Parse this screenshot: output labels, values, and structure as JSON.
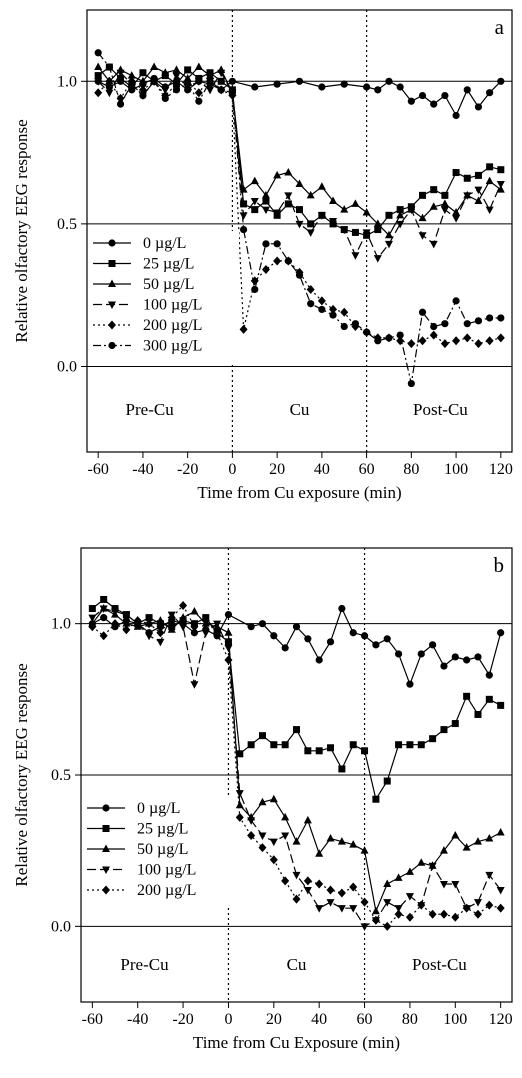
{
  "chart_data": [
    {
      "type": "line",
      "panel_label": "a",
      "xlabel": "Time from Cu exposure (min)",
      "ylabel": "Relative olfactory EEG response",
      "xlim": [
        -65,
        125
      ],
      "ylim": [
        -0.3,
        1.25
      ],
      "xticks": [
        -60,
        -40,
        -20,
        0,
        20,
        40,
        60,
        80,
        100,
        120
      ],
      "xtick_labels": [
        "-60",
        "-40",
        "-20",
        "0",
        "20",
        "40",
        "60",
        "80",
        "100",
        "120"
      ],
      "yticks": [
        0.0,
        0.5,
        1.0
      ],
      "ytick_labels": [
        "0.0",
        "0.5",
        "1.0"
      ],
      "reference_lines_y": [
        0.0,
        0.5,
        1.0
      ],
      "vertical_lines_x": [
        0,
        60
      ],
      "phase_labels": [
        {
          "text": "Pre-Cu",
          "x": -37
        },
        {
          "text": "Cu",
          "x": 30
        },
        {
          "text": "Post-Cu",
          "x": 93
        }
      ],
      "legend_position": "middle-left",
      "series": [
        {
          "name": "0 µg/L",
          "marker": "circle",
          "dash": "solid",
          "x": [
            -60,
            -55,
            -50,
            -45,
            -40,
            -35,
            -30,
            -25,
            -20,
            -15,
            -10,
            -5,
            0,
            10,
            20,
            30,
            40,
            50,
            60,
            65,
            70,
            75,
            80,
            85,
            90,
            95,
            100,
            105,
            110,
            115,
            120
          ],
          "y": [
            1.0,
            0.98,
            1.0,
            0.97,
            0.99,
            1.01,
            0.98,
            1.0,
            0.97,
            1.0,
            0.99,
            0.97,
            1.0,
            0.98,
            0.99,
            1.0,
            0.98,
            0.99,
            0.98,
            0.97,
            1.0,
            0.98,
            0.93,
            0.95,
            0.92,
            0.95,
            0.88,
            0.97,
            0.91,
            0.96,
            1.0
          ]
        },
        {
          "name": "25 µg/L",
          "marker": "square",
          "dash": "solid",
          "x": [
            -60,
            -55,
            -50,
            -45,
            -40,
            -35,
            -30,
            -25,
            -20,
            -15,
            -10,
            -5,
            0,
            5,
            10,
            15,
            20,
            25,
            30,
            35,
            40,
            45,
            50,
            55,
            60,
            65,
            70,
            75,
            80,
            85,
            90,
            95,
            100,
            105,
            110,
            115,
            120
          ],
          "y": [
            1.02,
            1.05,
            1.01,
            0.98,
            1.03,
            1.0,
            1.02,
            0.99,
            1.04,
            1.01,
            1.03,
            1.0,
            0.97,
            0.57,
            0.55,
            0.58,
            0.53,
            0.57,
            0.55,
            0.5,
            0.53,
            0.5,
            0.48,
            0.47,
            0.46,
            0.48,
            0.53,
            0.55,
            0.56,
            0.6,
            0.62,
            0.6,
            0.68,
            0.66,
            0.67,
            0.7,
            0.69
          ]
        },
        {
          "name": "50 µg/L",
          "marker": "triangle-up",
          "dash": "solid",
          "x": [
            -60,
            -55,
            -50,
            -45,
            -40,
            -35,
            -30,
            -25,
            -20,
            -15,
            -10,
            -5,
            0,
            5,
            10,
            15,
            20,
            25,
            30,
            35,
            40,
            45,
            50,
            55,
            60,
            65,
            70,
            75,
            80,
            85,
            90,
            95,
            100,
            105,
            110,
            115,
            120
          ],
          "y": [
            1.05,
            1.0,
            1.04,
            1.02,
            1.0,
            1.05,
            1.03,
            1.04,
            1.01,
            1.05,
            1.02,
            1.04,
            0.96,
            0.62,
            0.65,
            0.6,
            0.67,
            0.68,
            0.64,
            0.6,
            0.63,
            0.58,
            0.55,
            0.57,
            0.54,
            0.5,
            0.46,
            0.53,
            0.55,
            0.52,
            0.56,
            0.57,
            0.54,
            0.6,
            0.58,
            0.65,
            0.62
          ]
        },
        {
          "name": "100 µg/L",
          "marker": "triangle-down",
          "dash": "long-dash",
          "x": [
            -60,
            -55,
            -50,
            -45,
            -40,
            -35,
            -30,
            -25,
            -20,
            -15,
            -10,
            -5,
            0,
            5,
            10,
            15,
            20,
            25,
            30,
            35,
            40,
            45,
            50,
            55,
            60,
            65,
            70,
            75,
            80,
            85,
            90,
            95,
            100,
            105,
            110,
            115,
            120
          ],
          "y": [
            1.0,
            0.96,
            1.03,
            0.99,
            0.95,
            1.0,
            0.97,
            1.02,
            0.98,
            1.0,
            0.97,
            1.03,
            0.96,
            0.53,
            0.58,
            0.55,
            0.54,
            0.6,
            0.5,
            0.47,
            0.53,
            0.51,
            0.48,
            0.39,
            0.47,
            0.38,
            0.43,
            0.5,
            0.55,
            0.46,
            0.43,
            0.55,
            0.52,
            0.6,
            0.62,
            0.55,
            0.64
          ]
        },
        {
          "name": "200 µg/L",
          "marker": "diamond",
          "dash": "dotted",
          "x": [
            -60,
            -55,
            -50,
            -45,
            -40,
            -35,
            -30,
            -25,
            -20,
            -15,
            -10,
            -5,
            0,
            5,
            10,
            15,
            20,
            25,
            30,
            35,
            40,
            45,
            50,
            55,
            60,
            65,
            70,
            75,
            80,
            85,
            90,
            95,
            100,
            105,
            110,
            115,
            120
          ],
          "y": [
            0.96,
            1.0,
            0.94,
            1.0,
            0.97,
            1.0,
            0.95,
            0.99,
            1.0,
            0.96,
            1.01,
            0.97,
            0.95,
            0.13,
            0.3,
            0.34,
            0.37,
            0.37,
            0.33,
            0.27,
            0.23,
            0.2,
            0.19,
            0.14,
            0.12,
            0.1,
            0.1,
            0.09,
            0.08,
            0.09,
            0.11,
            0.08,
            0.09,
            0.1,
            0.08,
            0.09,
            0.1
          ]
        },
        {
          "name": "300 µg/L",
          "marker": "circle",
          "dash": "dash-dot",
          "x": [
            -60,
            -55,
            -50,
            -45,
            -40,
            -35,
            -30,
            -25,
            -20,
            -15,
            -10,
            -5,
            0,
            5,
            10,
            15,
            20,
            25,
            30,
            35,
            40,
            45,
            50,
            55,
            60,
            65,
            70,
            75,
            80,
            85,
            90,
            95,
            100,
            105,
            110,
            115,
            120
          ],
          "y": [
            1.1,
            1.05,
            0.92,
            0.99,
            0.95,
            1.0,
            0.94,
            0.97,
            0.99,
            0.93,
            1.0,
            0.97,
            0.96,
            0.48,
            0.27,
            0.43,
            0.43,
            0.37,
            0.32,
            0.22,
            0.2,
            0.18,
            0.14,
            0.15,
            0.12,
            0.09,
            0.1,
            0.11,
            -0.06,
            0.19,
            0.14,
            0.15,
            0.23,
            0.15,
            0.16,
            0.17,
            0.17
          ]
        }
      ]
    },
    {
      "type": "line",
      "panel_label": "b",
      "xlabel": "Time from Cu Exposure (min)",
      "ylabel": "Relative olfactory EEG response",
      "xlim": [
        -65,
        125
      ],
      "ylim": [
        -0.25,
        1.25
      ],
      "xticks": [
        -60,
        -40,
        -20,
        0,
        20,
        40,
        60,
        80,
        100,
        120
      ],
      "xtick_labels": [
        "-60",
        "-40",
        "-20",
        "0",
        "20",
        "40",
        "60",
        "80",
        "100",
        "120"
      ],
      "yticks": [
        0.0,
        0.5,
        1.0
      ],
      "ytick_labels": [
        "0.0",
        "0.5",
        "1.0"
      ],
      "reference_lines_y": [
        0.0,
        0.5,
        1.0
      ],
      "vertical_lines_x": [
        0,
        60
      ],
      "phase_labels": [
        {
          "text": "Pre-Cu",
          "x": -37
        },
        {
          "text": "Cu",
          "x": 30
        },
        {
          "text": "Post-Cu",
          "x": 93
        }
      ],
      "legend_position": "lower-left",
      "series": [
        {
          "name": "0 µg/L",
          "marker": "circle",
          "dash": "solid",
          "x": [
            -60,
            -55,
            -50,
            -45,
            -40,
            -35,
            -30,
            -25,
            -20,
            -15,
            -10,
            -5,
            0,
            10,
            15,
            20,
            25,
            30,
            35,
            40,
            45,
            50,
            55,
            60,
            65,
            70,
            75,
            80,
            85,
            90,
            95,
            100,
            105,
            110,
            115,
            120
          ],
          "y": [
            1.0,
            1.02,
            0.99,
            1.01,
            1.0,
            0.97,
            0.99,
            1.01,
            1.0,
            0.97,
            0.98,
            0.96,
            1.03,
            0.99,
            1.0,
            0.96,
            0.92,
            0.99,
            0.95,
            0.88,
            0.94,
            1.05,
            0.97,
            0.96,
            0.93,
            0.95,
            0.9,
            0.8,
            0.9,
            0.93,
            0.86,
            0.89,
            0.88,
            0.89,
            0.83,
            0.97
          ]
        },
        {
          "name": "25 µg/L",
          "marker": "square",
          "dash": "solid",
          "x": [
            -60,
            -55,
            -50,
            -45,
            -40,
            -35,
            -30,
            -25,
            -20,
            -15,
            -10,
            -5,
            0,
            5,
            10,
            15,
            20,
            25,
            30,
            35,
            40,
            45,
            50,
            55,
            60,
            65,
            70,
            75,
            80,
            85,
            90,
            95,
            100,
            105,
            110,
            115,
            120
          ],
          "y": [
            1.05,
            1.08,
            1.05,
            1.03,
            1.0,
            1.02,
            1.0,
            0.99,
            1.01,
            1.0,
            1.02,
            0.97,
            0.94,
            0.57,
            0.6,
            0.63,
            0.6,
            0.6,
            0.65,
            0.58,
            0.58,
            0.59,
            0.52,
            0.6,
            0.58,
            0.42,
            0.48,
            0.6,
            0.6,
            0.6,
            0.62,
            0.65,
            0.67,
            0.76,
            0.7,
            0.75,
            0.73
          ]
        },
        {
          "name": "50 µg/L",
          "marker": "triangle-up",
          "dash": "solid",
          "x": [
            -60,
            -55,
            -50,
            -45,
            -40,
            -35,
            -30,
            -25,
            -20,
            -15,
            -10,
            -5,
            0,
            5,
            10,
            15,
            20,
            25,
            30,
            35,
            40,
            45,
            50,
            55,
            60,
            65,
            70,
            75,
            80,
            85,
            90,
            95,
            100,
            105,
            110,
            115,
            120
          ],
          "y": [
            1.0,
            1.05,
            1.03,
            1.0,
            0.99,
            1.0,
            1.01,
            0.98,
            1.02,
            1.04,
            1.0,
            0.99,
            0.97,
            0.4,
            0.36,
            0.41,
            0.42,
            0.36,
            0.28,
            0.35,
            0.24,
            0.29,
            0.28,
            0.27,
            0.25,
            0.05,
            0.14,
            0.16,
            0.18,
            0.21,
            0.2,
            0.25,
            0.3,
            0.26,
            0.28,
            0.29,
            0.31
          ]
        },
        {
          "name": "100 µg/L",
          "marker": "triangle-down",
          "dash": "long-dash",
          "x": [
            -60,
            -55,
            -50,
            -45,
            -40,
            -35,
            -30,
            -25,
            -20,
            -15,
            -10,
            -5,
            0,
            5,
            10,
            15,
            20,
            25,
            30,
            35,
            40,
            45,
            50,
            55,
            60,
            65,
            70,
            75,
            80,
            85,
            90,
            95,
            100,
            105,
            110,
            115,
            120
          ],
          "y": [
            1.02,
            1.05,
            1.04,
            1.03,
            1.0,
            0.96,
            0.94,
            1.03,
            0.99,
            0.8,
            0.97,
            1.0,
            0.92,
            0.44,
            0.35,
            0.3,
            0.28,
            0.3,
            0.17,
            0.12,
            0.06,
            0.08,
            0.06,
            0.06,
            0.0,
            0.02,
            0.08,
            0.06,
            0.1,
            0.07,
            0.2,
            0.14,
            0.14,
            0.06,
            0.08,
            0.17,
            0.12
          ]
        },
        {
          "name": "200 µg/L",
          "marker": "diamond",
          "dash": "dotted",
          "x": [
            -60,
            -55,
            -50,
            -45,
            -40,
            -35,
            -30,
            -25,
            -20,
            -15,
            -10,
            -5,
            0,
            5,
            10,
            15,
            20,
            25,
            30,
            35,
            40,
            45,
            50,
            55,
            60,
            65,
            70,
            75,
            80,
            85,
            90,
            95,
            100,
            105,
            110,
            115,
            120
          ],
          "y": [
            0.99,
            0.96,
            1.0,
            0.98,
            1.01,
            1.0,
            0.97,
            1.02,
            1.06,
            0.99,
            1.01,
            0.97,
            0.88,
            0.36,
            0.3,
            0.26,
            0.22,
            0.15,
            0.09,
            0.15,
            0.14,
            0.12,
            0.11,
            0.13,
            0.08,
            0.02,
            0.0,
            0.04,
            0.03,
            0.07,
            0.04,
            0.04,
            0.03,
            0.06,
            0.04,
            0.07,
            0.06
          ]
        }
      ]
    }
  ]
}
